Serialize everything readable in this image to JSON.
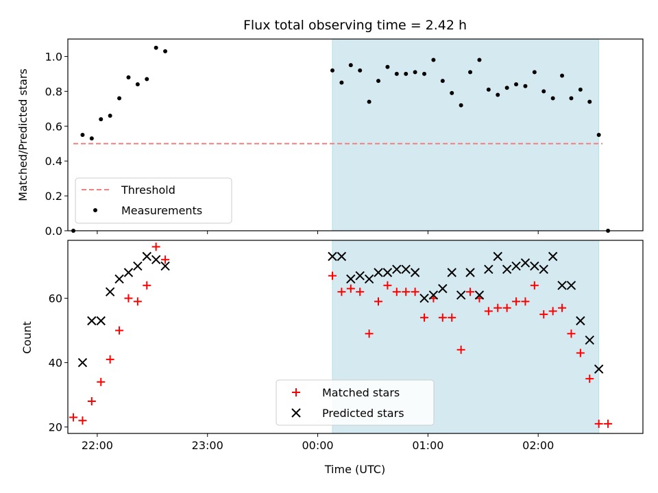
{
  "chart_data": [
    {
      "type": "scatter",
      "title": "Flux total observing time = 2.42 h",
      "xlabel": "",
      "ylabel": "Matched/Predicted stars",
      "xlim": [
        "21:44",
        "02:57"
      ],
      "ylim": [
        0,
        1.1
      ],
      "xticks": [
        "22:00",
        "23:00",
        "00:00",
        "01:00",
        "02:00"
      ],
      "yticks": [
        "0.0",
        "0.2",
        "0.4",
        "0.6",
        "0.8",
        "1.0"
      ],
      "shaded_region": {
        "start": "00:08",
        "end": "02:33",
        "color": "#d4eaf0"
      },
      "threshold": {
        "name": "Threshold",
        "value": 0.5,
        "start": "21:47",
        "end": "02:35",
        "color": "#f08080",
        "style": "dashed"
      },
      "series": [
        {
          "name": "Measurements",
          "marker": "dot",
          "color": "#000000",
          "x": [
            "21:47",
            "21:52",
            "21:57",
            "22:02",
            "22:07",
            "22:12",
            "22:17",
            "22:22",
            "22:27",
            "22:32",
            "22:37",
            "00:08",
            "00:13",
            "00:18",
            "00:23",
            "00:28",
            "00:33",
            "00:38",
            "00:43",
            "00:48",
            "00:53",
            "00:58",
            "01:03",
            "01:08",
            "01:13",
            "01:18",
            "01:23",
            "01:28",
            "01:33",
            "01:38",
            "01:43",
            "01:48",
            "01:53",
            "01:58",
            "02:03",
            "02:08",
            "02:13",
            "02:18",
            "02:23",
            "02:28",
            "02:33",
            "02:38"
          ],
          "y": [
            0.0,
            0.55,
            0.53,
            0.64,
            0.66,
            0.76,
            0.88,
            0.84,
            0.87,
            1.05,
            1.03,
            0.92,
            0.85,
            0.95,
            0.92,
            0.74,
            0.86,
            0.94,
            0.9,
            0.9,
            0.91,
            0.9,
            0.98,
            0.86,
            0.79,
            0.72,
            0.91,
            0.98,
            0.81,
            0.78,
            0.82,
            0.84,
            0.83,
            0.91,
            0.8,
            0.76,
            0.89,
            0.76,
            0.81,
            0.74,
            0.55,
            0.0
          ]
        }
      ],
      "legend": {
        "placement": "lower-left",
        "entries": [
          "Threshold",
          "Measurements"
        ]
      }
    },
    {
      "type": "scatter",
      "title": "",
      "xlabel": "Time (UTC)",
      "ylabel": "Count",
      "xlim": [
        "21:44",
        "02:57"
      ],
      "ylim": [
        18,
        78
      ],
      "xticks": [
        "22:00",
        "23:00",
        "00:00",
        "01:00",
        "02:00"
      ],
      "yticks": [
        "20",
        "40",
        "60"
      ],
      "shaded_region": {
        "start": "00:08",
        "end": "02:33",
        "color": "#d4eaf0"
      },
      "series": [
        {
          "name": "Matched stars",
          "marker": "plus",
          "color": "#ff0000",
          "x": [
            "21:47",
            "21:52",
            "21:57",
            "22:02",
            "22:07",
            "22:12",
            "22:17",
            "22:22",
            "22:27",
            "22:32",
            "22:37",
            "00:08",
            "00:13",
            "00:18",
            "00:23",
            "00:28",
            "00:33",
            "00:38",
            "00:43",
            "00:48",
            "00:53",
            "00:58",
            "01:03",
            "01:08",
            "01:13",
            "01:18",
            "01:23",
            "01:28",
            "01:33",
            "01:38",
            "01:43",
            "01:48",
            "01:53",
            "01:58",
            "02:03",
            "02:08",
            "02:13",
            "02:18",
            "02:23",
            "02:28",
            "02:33",
            "02:38"
          ],
          "y": [
            23,
            22,
            28,
            34,
            41,
            50,
            60,
            59,
            64,
            76,
            72,
            67,
            62,
            63,
            62,
            49,
            59,
            64,
            62,
            62,
            62,
            54,
            60,
            54,
            54,
            44,
            62,
            60,
            56,
            57,
            57,
            59,
            59,
            64,
            55,
            56,
            57,
            49,
            43,
            35,
            21,
            21
          ]
        },
        {
          "name": "Predicted stars",
          "marker": "x",
          "color": "#000000",
          "x": [
            "21:52",
            "21:57",
            "22:02",
            "22:07",
            "22:12",
            "22:17",
            "22:22",
            "22:27",
            "22:32",
            "22:37",
            "00:08",
            "00:13",
            "00:18",
            "00:23",
            "00:28",
            "00:33",
            "00:38",
            "00:43",
            "00:48",
            "00:53",
            "00:58",
            "01:03",
            "01:08",
            "01:13",
            "01:18",
            "01:23",
            "01:28",
            "01:33",
            "01:38",
            "01:43",
            "01:48",
            "01:53",
            "01:58",
            "02:03",
            "02:08",
            "02:13",
            "02:18",
            "02:23",
            "02:28",
            "02:33"
          ],
          "y": [
            40,
            53,
            53,
            62,
            66,
            68,
            70,
            73,
            72,
            70,
            73,
            73,
            66,
            67,
            66,
            68,
            68,
            69,
            69,
            68,
            60,
            61,
            63,
            68,
            61,
            68,
            61,
            69,
            73,
            69,
            70,
            71,
            70,
            69,
            73,
            64,
            64,
            53,
            47,
            38
          ]
        }
      ],
      "legend": {
        "placement": "lower-center",
        "entries": [
          "Matched stars",
          "Predicted stars"
        ]
      }
    }
  ]
}
